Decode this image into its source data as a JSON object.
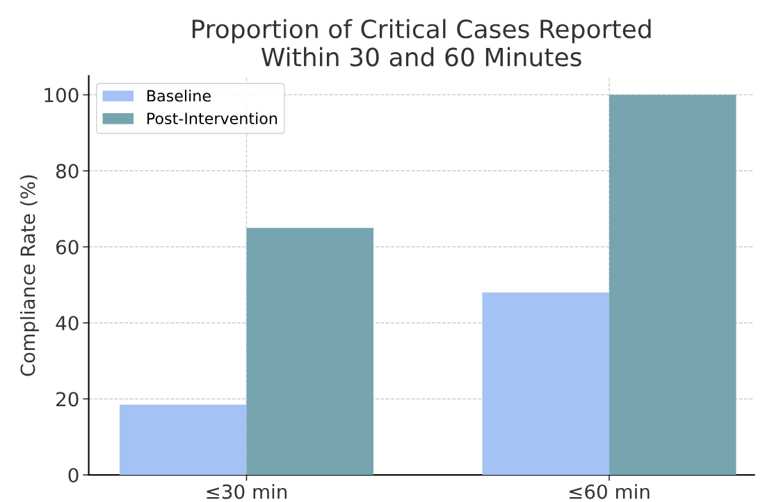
{
  "chart_data": {
    "type": "bar",
    "title": "Proportion of Critical Cases Reported\nWithin 30 and 60 Minutes",
    "ylabel": "Compliance Rate (%)",
    "categories": [
      "≤30 min",
      "≤60 min"
    ],
    "series": [
      {
        "name": "Baseline",
        "color": "#a4c2f4",
        "values": [
          18.5,
          48
        ]
      },
      {
        "name": "Post-Intervention",
        "color": "#76a5af",
        "values": [
          65,
          100
        ]
      }
    ],
    "ylim": [
      0,
      105
    ],
    "yticks": [
      0,
      20,
      40,
      60,
      80,
      100
    ],
    "grid": true,
    "legend": "top left"
  }
}
